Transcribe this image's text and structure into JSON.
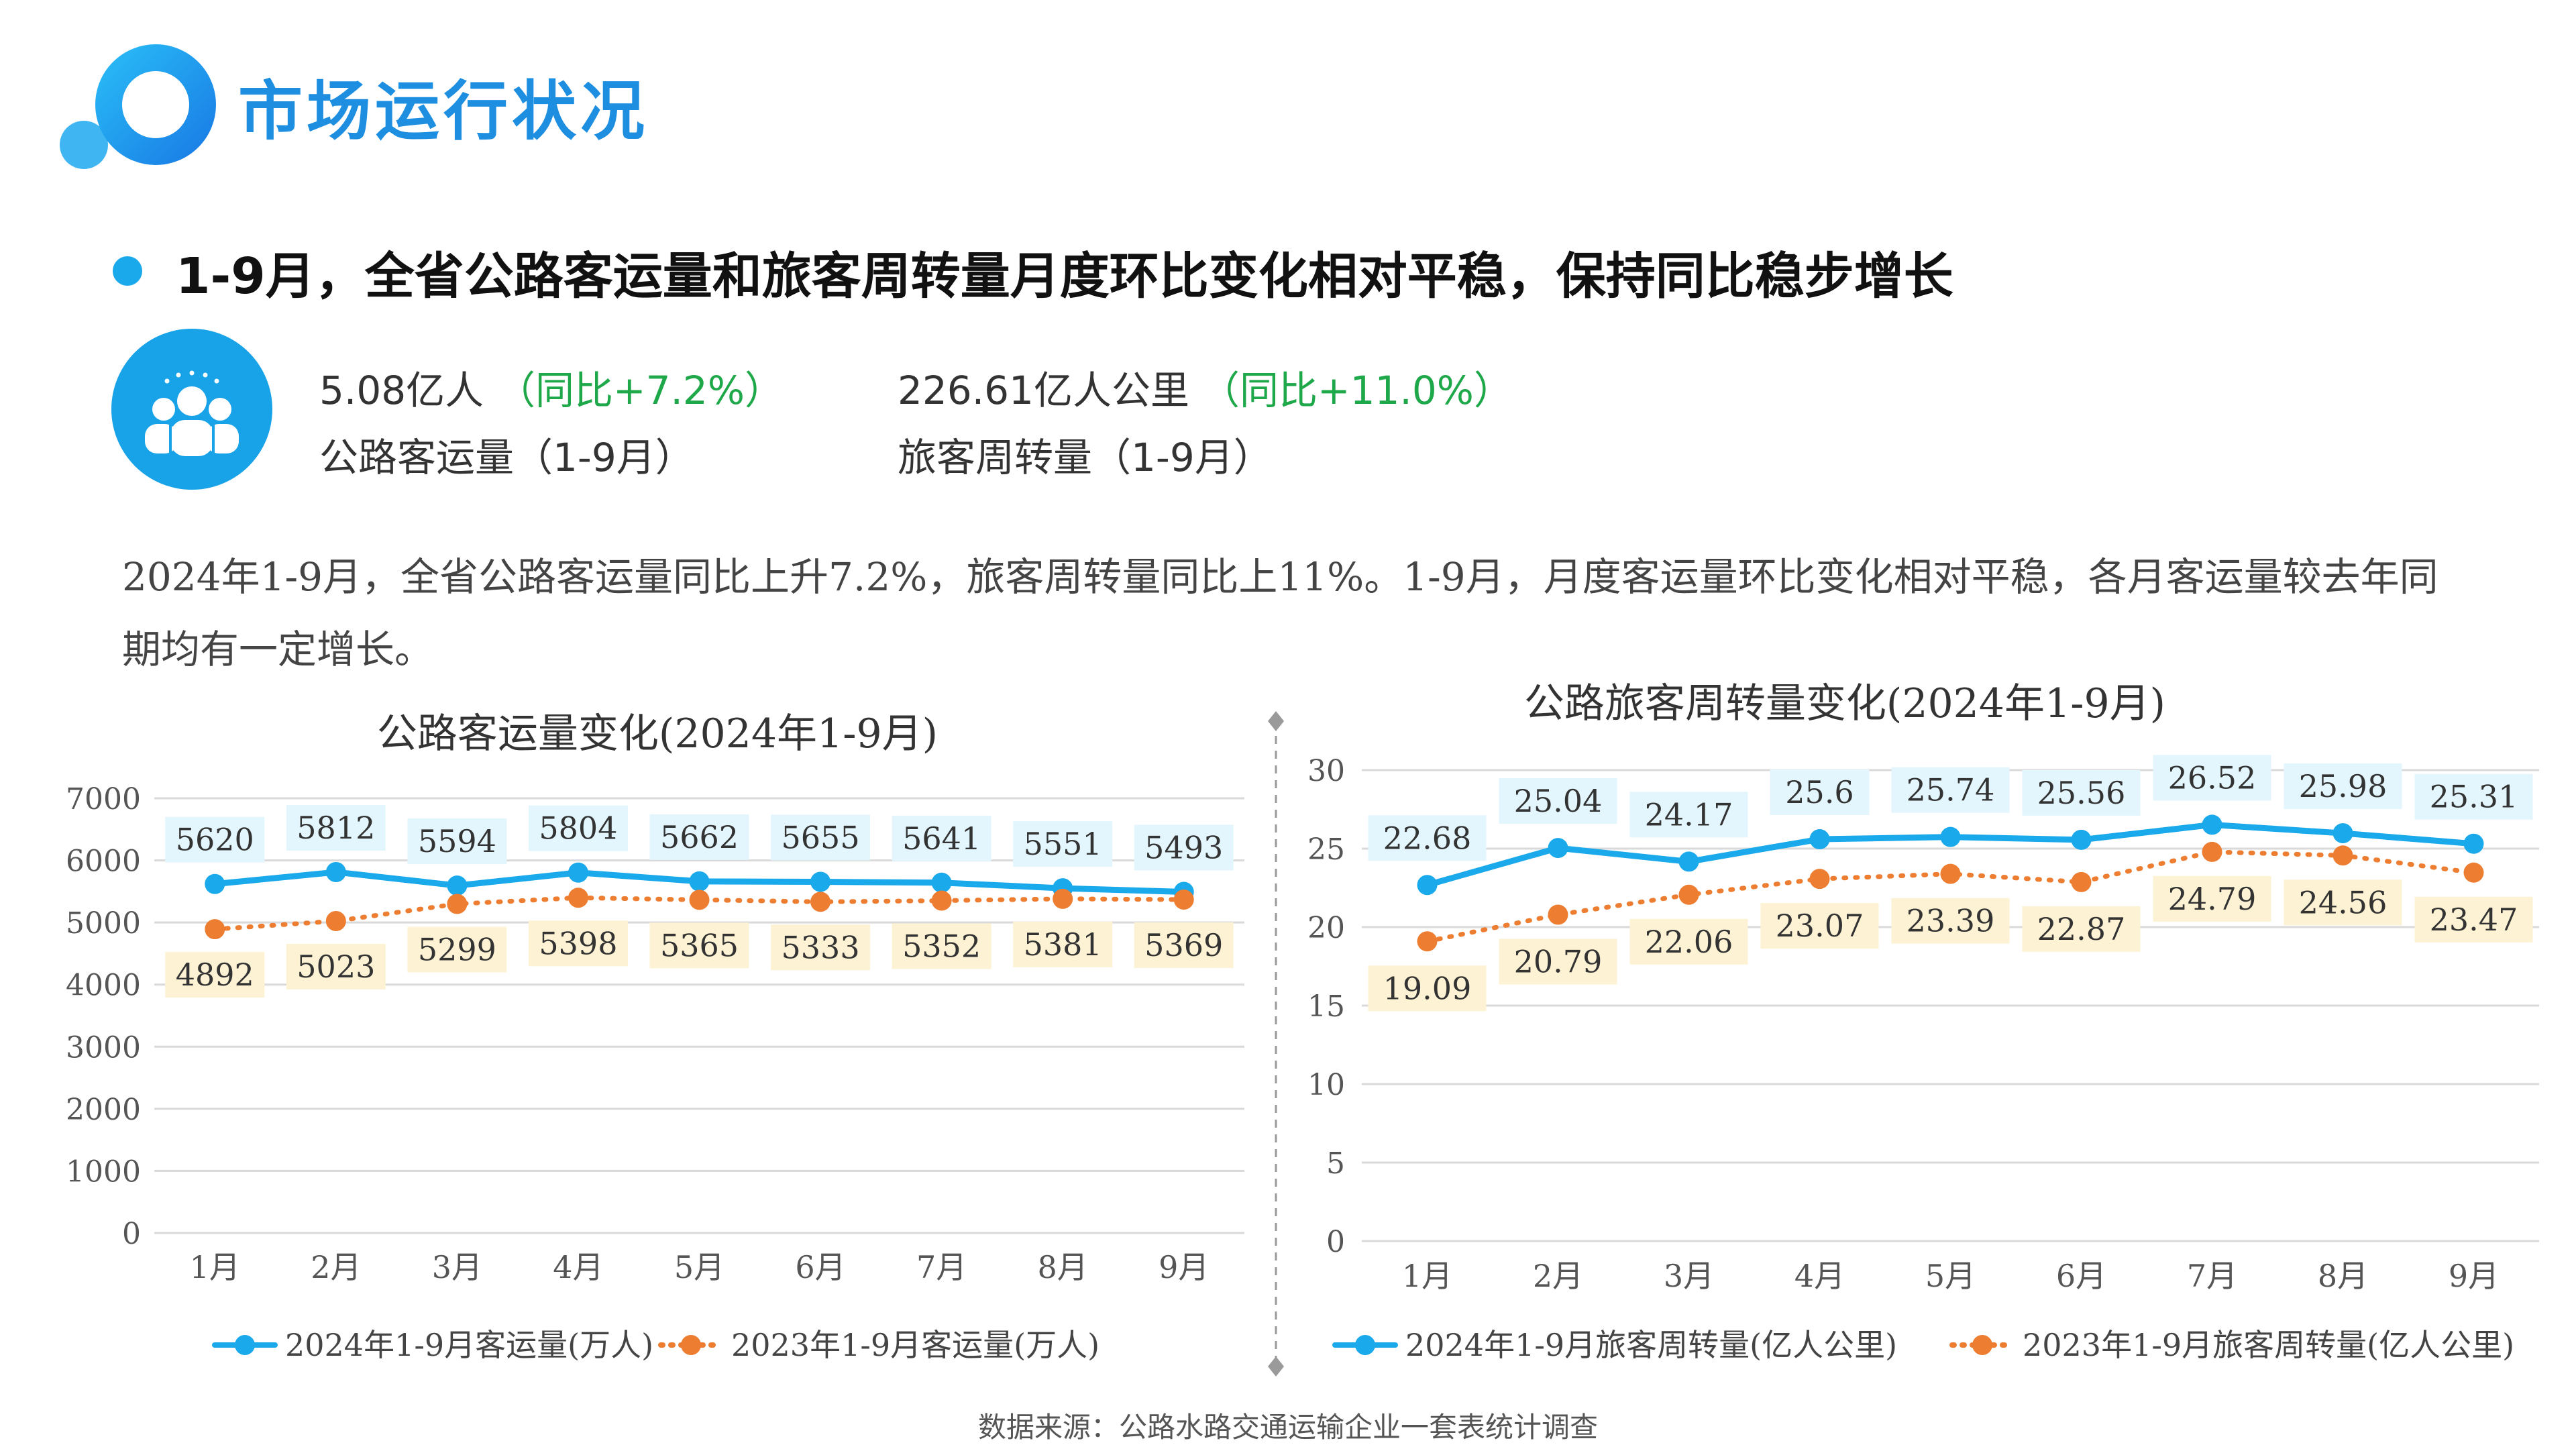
{
  "header": {
    "title": "市场运行状况"
  },
  "headline": "1-9月，全省公路客运量和旅客周转量月度环比变化相对平稳，保持同比稳步增长",
  "kpis": [
    {
      "value": "5.08亿人",
      "growth": "（同比+7.2%）",
      "label": "公路客运量（1-9月）"
    },
    {
      "value": "226.61亿人公里",
      "growth": "（同比+11.0%）",
      "label": "旅客周转量（1-9月）"
    }
  ],
  "paragraph": "2024年1-9月，全省公路客运量同比上升7.2%，旅客周转量同比上11%。1-9月，月度客运量环比变化相对平稳，各月客运量较去年同期均有一定增长。",
  "source": "数据来源：公路水路交通运输企业一套表统计调查",
  "colors": {
    "series_2024": "#1aa9ea",
    "series_2023": "#ed7d31",
    "label_2024_bg": "#e3f6fd",
    "label_2023_bg": "#fdf2d3"
  },
  "chart_data": [
    {
      "type": "line",
      "title": "公路客运量变化(2024年1-9月)",
      "categories": [
        "1月",
        "2月",
        "3月",
        "4月",
        "5月",
        "6月",
        "7月",
        "8月",
        "9月"
      ],
      "ylim": [
        0,
        7000
      ],
      "yticks": [
        0,
        1000,
        2000,
        3000,
        4000,
        5000,
        6000,
        7000
      ],
      "grid": true,
      "legend": "bottom",
      "series": [
        {
          "name": "2024年1-9月客运量(万人)",
          "values": [
            5620,
            5812,
            5594,
            5804,
            5662,
            5655,
            5641,
            5551,
            5493
          ]
        },
        {
          "name": "2023年1-9月客运量(万人)",
          "values": [
            4892,
            5023,
            5299,
            5398,
            5365,
            5333,
            5352,
            5381,
            5369
          ]
        }
      ]
    },
    {
      "type": "line",
      "title": "公路旅客周转量变化(2024年1-9月)",
      "categories": [
        "1月",
        "2月",
        "3月",
        "4月",
        "5月",
        "6月",
        "7月",
        "8月",
        "9月"
      ],
      "ylim": [
        0,
        30
      ],
      "yticks": [
        0,
        5,
        10,
        15,
        20,
        25,
        30
      ],
      "grid": true,
      "legend": "bottom",
      "series": [
        {
          "name": "2024年1-9月旅客周转量(亿人公里)",
          "values": [
            22.68,
            25.04,
            24.17,
            25.6,
            25.74,
            25.56,
            26.52,
            25.98,
            25.31
          ]
        },
        {
          "name": "2023年1-9月旅客周转量(亿人公里)",
          "values": [
            19.09,
            20.79,
            22.06,
            23.07,
            23.39,
            22.87,
            24.79,
            24.56,
            23.47
          ]
        }
      ]
    }
  ]
}
